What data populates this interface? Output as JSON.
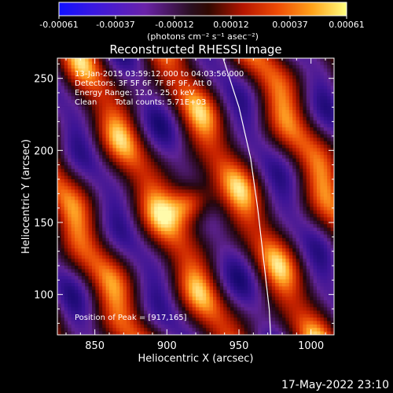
{
  "chart_data": {
    "type": "heatmap",
    "title": "Reconstructed RHESSI Image",
    "xlabel": "Heliocentric X (arcsec)",
    "ylabel": "Heliocentric Y (arcsec)",
    "xlim": [
      824,
      1016
    ],
    "ylim": [
      72,
      264
    ],
    "x_ticks": [
      850,
      900,
      950,
      1000
    ],
    "y_ticks": [
      100,
      150,
      200,
      250
    ],
    "colorbar": {
      "min": -0.00061,
      "max": 0.00061,
      "ticks": [
        -0.00061,
        -0.00037,
        -0.00012,
        0.00012,
        0.00037,
        0.00061
      ],
      "tick_labels": [
        "-0.00061",
        "-0.00037",
        "-0.00012",
        "0.00012",
        "0.00037",
        "0.00061"
      ],
      "units_label": "(photons cm⁻² s⁻¹ asec⁻²)"
    },
    "annotations": {
      "time_range": "13-Jan-2015 03:59:12.000 to 04:03:56.000",
      "detectors": "Detectors: 3F 5F 6F 7F 8F 9F, Att 0",
      "energy_range": "Energy Range: 12.0 - 25.0 keV",
      "algorithm": "Clean",
      "total_counts": "Total counts: 5.71E+03",
      "peak_position": "Position of Peak = [917,165]"
    },
    "peak": {
      "x": 917,
      "y": 165
    },
    "limb": [
      [
        939,
        264
      ],
      [
        950,
        230
      ],
      [
        958,
        195
      ],
      [
        963,
        160
      ],
      [
        967,
        125
      ],
      [
        971,
        90
      ],
      [
        972,
        72
      ]
    ]
  },
  "footer": {
    "timestamp": "17-May-2022 23:10"
  },
  "colors": {
    "background": "#000000",
    "text": "#ffffff",
    "limb": "#ffffff"
  }
}
